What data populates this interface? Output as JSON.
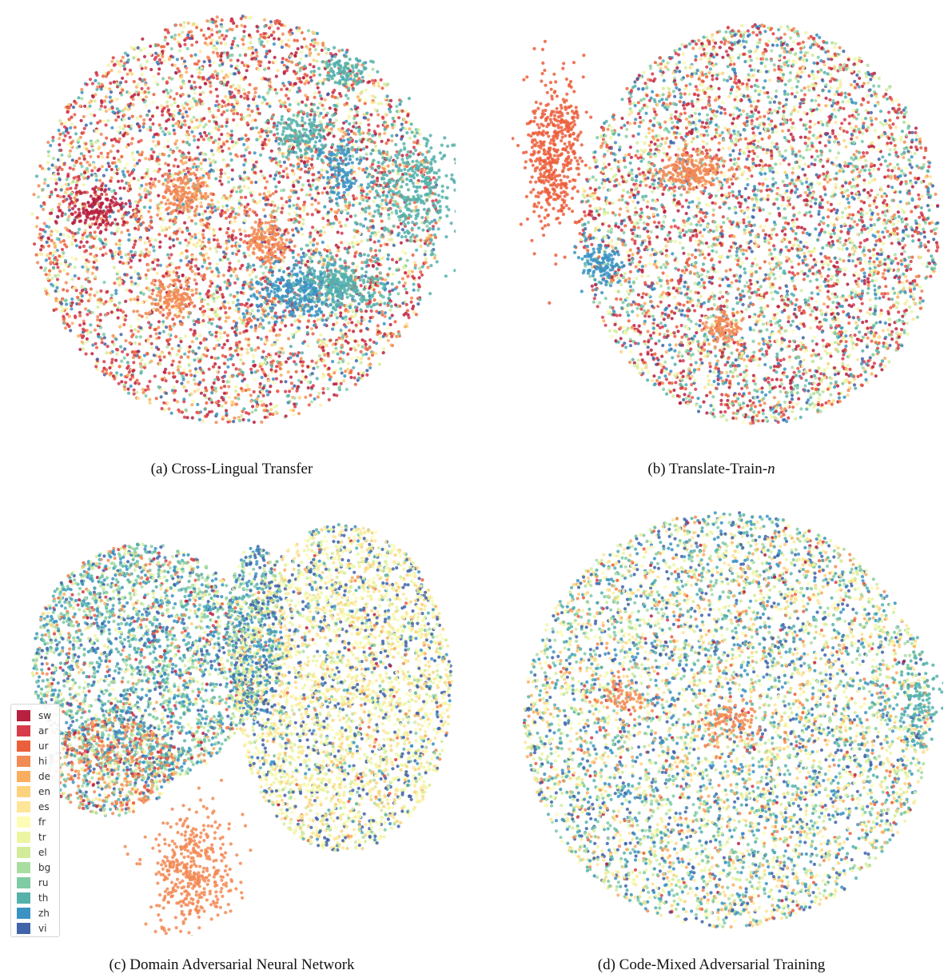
{
  "languages": [
    "sw",
    "ar",
    "ur",
    "hi",
    "de",
    "en",
    "es",
    "fr",
    "tr",
    "el",
    "bg",
    "ru",
    "th",
    "zh",
    "vi"
  ],
  "palette": {
    "sw": "#b8203f",
    "ar": "#d83b4a",
    "ur": "#ec5f3c",
    "hi": "#f28a55",
    "de": "#f9ae5f",
    "en": "#fcd27c",
    "es": "#fee597",
    "fr": "#fdfcb5",
    "tr": "#ecf6a2",
    "el": "#d2ec9b",
    "bg": "#aadda2",
    "ru": "#7fcba4",
    "th": "#55b2ab",
    "zh": "#3a93c3",
    "vi": "#4063a9"
  },
  "chart_data": [
    {
      "type": "scatter",
      "caption_prefix": "(a) Cross-Lingual Transfer",
      "caption_italic": "",
      "series": [
        {
          "name": "sw",
          "points": []
        },
        {
          "name": "ar",
          "points": []
        },
        {
          "name": "ur",
          "points": []
        },
        {
          "name": "hi",
          "points": []
        },
        {
          "name": "de",
          "points": []
        },
        {
          "name": "en",
          "points": []
        },
        {
          "name": "es",
          "points": []
        },
        {
          "name": "fr",
          "points": []
        },
        {
          "name": "tr",
          "points": []
        },
        {
          "name": "el",
          "points": []
        },
        {
          "name": "bg",
          "points": []
        },
        {
          "name": "ru",
          "points": []
        },
        {
          "name": "th",
          "points": []
        },
        {
          "name": "zh",
          "points": []
        },
        {
          "name": "vi",
          "points": []
        }
      ]
    },
    {
      "type": "scatter",
      "caption_prefix": "(b) Translate-Train-",
      "caption_italic": "n",
      "series": []
    },
    {
      "type": "scatter",
      "caption_prefix": "(c) Domain Adversarial Neural Network",
      "caption_italic": "",
      "legend": "lower-left",
      "series": []
    },
    {
      "type": "scatter",
      "caption_prefix": "(d) Code-Mixed Adversarial Training",
      "caption_italic": "",
      "series": []
    }
  ]
}
